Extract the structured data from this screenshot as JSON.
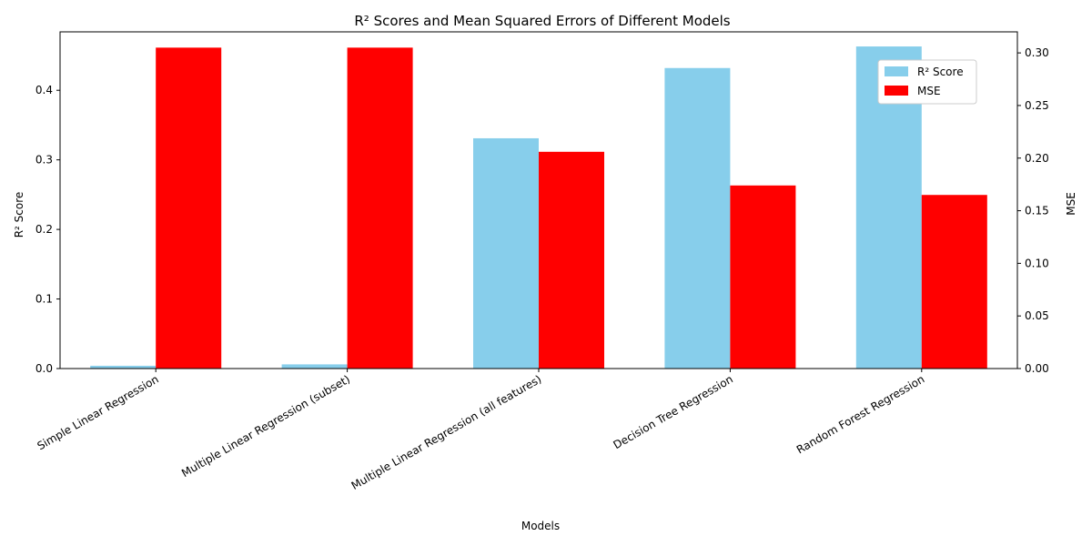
{
  "chart_data": {
    "type": "bar",
    "title": "R² Scores and Mean Squared Errors of Different Models",
    "xlabel": "Models",
    "ylabel_left": "R² Score",
    "ylabel_right": "MSE",
    "categories": [
      "Simple Linear Regression",
      "Multiple Linear Regression (subset)",
      "Multiple Linear Regression (all features)",
      "Decision Tree Regression",
      "Random Forest Regression"
    ],
    "series": [
      {
        "name": "R² Score",
        "axis": "left",
        "color": "#87CEEB",
        "values": [
          0.004,
          0.006,
          0.331,
          0.432,
          0.463
        ]
      },
      {
        "name": "MSE",
        "axis": "right",
        "color": "#FF0000",
        "values": [
          0.305,
          0.305,
          0.206,
          0.174,
          0.165
        ]
      }
    ],
    "ylim_left": [
      0,
      0.484
    ],
    "ylim_right": [
      0,
      0.32
    ],
    "yticks_left": [
      "0.0",
      "0.1",
      "0.2",
      "0.3",
      "0.4"
    ],
    "yticks_right": [
      "0.00",
      "0.05",
      "0.10",
      "0.15",
      "0.20",
      "0.25",
      "0.30"
    ],
    "legend_position": "top-right",
    "grid": false
  }
}
